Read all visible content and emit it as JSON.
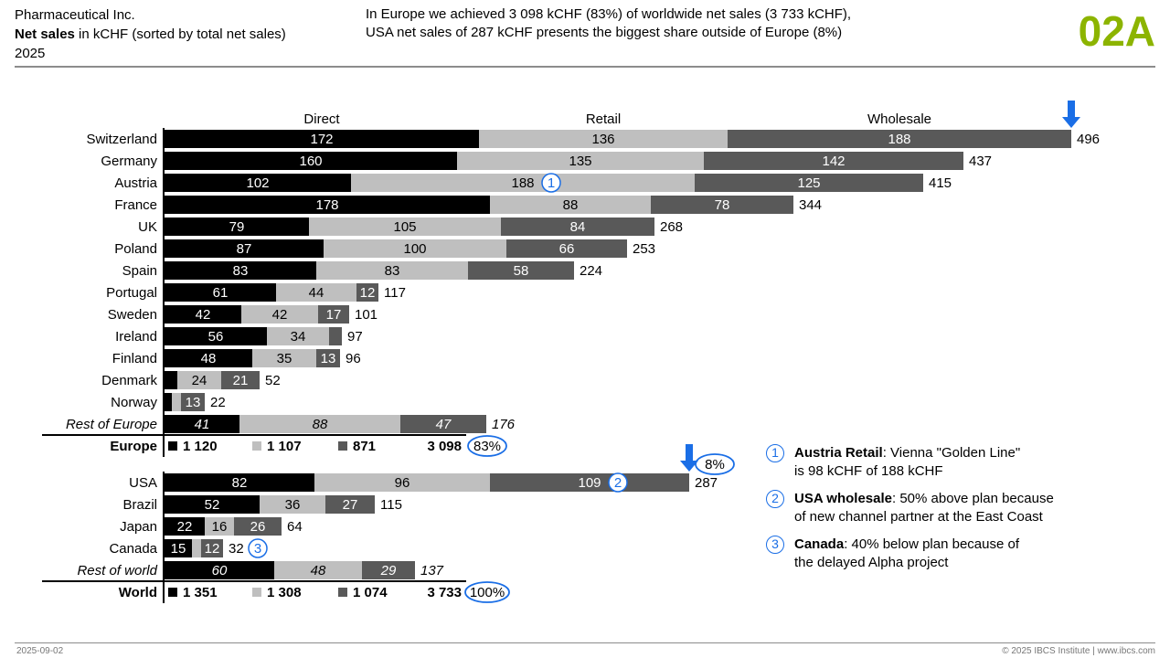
{
  "header": {
    "company": "Pharmaceutical Inc.",
    "measure_bold": "Net sales",
    "measure_rest": " in kCHF (sorted by total net sales)",
    "year": "2025",
    "message_line1": "In Europe we achieved 3 098 kCHF (83%) of worldwide net sales (3 733 kCHF),",
    "message_line2": "USA net sales of 287 kCHF presents the biggest share outside of Europe (8%)",
    "page_code": "02A"
  },
  "footer": {
    "date": "2025-09-02",
    "copyright": "© 2025 IBCS Institute | www.ibcs.com"
  },
  "colors": {
    "direct": "#000000",
    "retail": "#bfbfbf",
    "wholesale": "#595959",
    "highlight": "#1a6ee6",
    "accent": "#8cb400"
  },
  "chart_data": {
    "type": "bar",
    "orientation": "horizontal",
    "stacked": true,
    "unit": "kCHF",
    "series": [
      {
        "name": "Direct"
      },
      {
        "name": "Retail"
      },
      {
        "name": "Wholesale"
      }
    ],
    "groups": [
      {
        "rows": [
          {
            "category": "Switzerland",
            "values": [
              172,
              136,
              188
            ],
            "total": 496,
            "arrow": true
          },
          {
            "category": "Germany",
            "values": [
              160,
              135,
              142
            ],
            "total": 437
          },
          {
            "category": "Austria",
            "values": [
              102,
              188,
              125
            ],
            "total": 415,
            "marker": {
              "n": "1",
              "segment": 1
            }
          },
          {
            "category": "France",
            "values": [
              178,
              88,
              78
            ],
            "total": 344
          },
          {
            "category": "UK",
            "values": [
              79,
              105,
              84
            ],
            "total": 268
          },
          {
            "category": "Poland",
            "values": [
              87,
              100,
              66
            ],
            "total": 253
          },
          {
            "category": "Spain",
            "values": [
              83,
              83,
              58
            ],
            "total": 224
          },
          {
            "category": "Portugal",
            "values": [
              61,
              44,
              12
            ],
            "total": 117
          },
          {
            "category": "Sweden",
            "values": [
              42,
              42,
              17
            ],
            "total": 101
          },
          {
            "category": "Ireland",
            "values": [
              56,
              34,
              7
            ],
            "total": 97
          },
          {
            "category": "Finland",
            "values": [
              48,
              35,
              13
            ],
            "total": 96
          },
          {
            "category": "Denmark",
            "values": [
              7,
              24,
              21
            ],
            "total": 52
          },
          {
            "category": "Norway",
            "values": [
              4,
              5,
              13
            ],
            "total": 22
          },
          {
            "category": "Rest of Europe",
            "values": [
              41,
              88,
              47
            ],
            "total": 176,
            "italic": true
          }
        ],
        "summary": {
          "category": "Europe",
          "values": [
            "1 120",
            "1 107",
            "871"
          ],
          "total": "3 098",
          "share": "83%"
        }
      },
      {
        "rows": [
          {
            "category": "USA",
            "values": [
              82,
              96,
              109
            ],
            "total": 287,
            "arrow": true,
            "share": "8%",
            "marker": {
              "n": "2",
              "segment": 2
            }
          },
          {
            "category": "Brazil",
            "values": [
              52,
              36,
              27
            ],
            "total": 115
          },
          {
            "category": "Japan",
            "values": [
              22,
              16,
              26
            ],
            "total": 64
          },
          {
            "category": "Canada",
            "values": [
              15,
              5,
              12
            ],
            "total": 32,
            "marker": {
              "n": "3",
              "segment": "total"
            }
          },
          {
            "category": "Rest of world",
            "values": [
              60,
              48,
              29
            ],
            "total": 137,
            "italic": true
          }
        ],
        "summary": {
          "category": "World",
          "values": [
            "1 351",
            "1 308",
            "1 074"
          ],
          "total": "3 733",
          "share": "100%"
        }
      }
    ]
  },
  "notes": [
    {
      "n": "1",
      "bold": "Austria Retail",
      "text": ": Vienna \"Golden Line\"",
      "line2": "is 98 kCHF of 188 kCHF"
    },
    {
      "n": "2",
      "bold": "USA wholesale",
      "text": ": 50% above plan because",
      "line2": "of new channel partner at the East Coast"
    },
    {
      "n": "3",
      "bold": "Canada",
      "text": ": 40% below plan because of",
      "line2": "the delayed Alpha project"
    }
  ]
}
